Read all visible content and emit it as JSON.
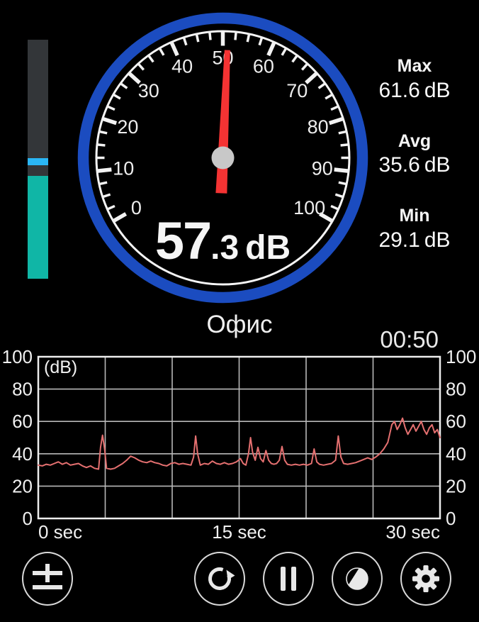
{
  "colors": {
    "background": "#000000",
    "ring_blue": "#1b4cc0",
    "needle_red": "#f43333",
    "hub_gray": "#c8c8c8",
    "tick_white": "#f2f2f2",
    "bar_track": "#333639",
    "bar_fill_teal": "#10b6a6",
    "bar_marker_cyan": "#2ab6f5",
    "chart_line": "#e57070",
    "chart_grid": "#b8b8b8",
    "chart_border": "#ededed"
  },
  "level_bar": {
    "fill_percent": 43,
    "marker_percent_from_bottom": 49
  },
  "gauge": {
    "min": 0,
    "max": 100,
    "major_step": 10,
    "minor_step": 2.5,
    "start_angle": -120,
    "end_angle": 120,
    "needle_value": 51,
    "reading": {
      "int": "57",
      "frac": ".3",
      "unit": "dB"
    }
  },
  "stats": [
    {
      "label": "Max",
      "value": "61.6",
      "unit": "dB"
    },
    {
      "label": "Avg",
      "value": "35.6",
      "unit": "dB"
    },
    {
      "label": "Min",
      "value": "29.1",
      "unit": "dB"
    }
  ],
  "location_label": "Офис",
  "timer": "00:50",
  "chart_data": {
    "type": "line",
    "title": "",
    "ylabel": "(dB)",
    "xlim": [
      0,
      30
    ],
    "ylim": [
      0,
      100
    ],
    "y_tick_step": 20,
    "x_grid_step": 5,
    "grid": true,
    "x_ticks": [
      {
        "t": 0,
        "label": "0 sec"
      },
      {
        "t": 15,
        "label": "15 sec"
      },
      {
        "t": 30,
        "label": "30 sec"
      }
    ],
    "series": [
      {
        "name": "sound-level-db",
        "points": [
          [
            0,
            33
          ],
          [
            0.3,
            32.5
          ],
          [
            0.6,
            33.5
          ],
          [
            0.9,
            33
          ],
          [
            1.2,
            34
          ],
          [
            1.5,
            35
          ],
          [
            1.8,
            33.5
          ],
          [
            2.1,
            34.5
          ],
          [
            2.4,
            33
          ],
          [
            2.7,
            33.5
          ],
          [
            3,
            34
          ],
          [
            3.3,
            32.5
          ],
          [
            3.6,
            31.5
          ],
          [
            3.9,
            32.5
          ],
          [
            4.2,
            31
          ],
          [
            4.5,
            30.5
          ],
          [
            4.65,
            44
          ],
          [
            4.8,
            51.5
          ],
          [
            4.95,
            43
          ],
          [
            5.1,
            31
          ],
          [
            5.4,
            30.5
          ],
          [
            5.7,
            31
          ],
          [
            6,
            32.5
          ],
          [
            6.3,
            34
          ],
          [
            6.6,
            36
          ],
          [
            6.9,
            38.5
          ],
          [
            7.2,
            37.5
          ],
          [
            7.5,
            36
          ],
          [
            7.8,
            35
          ],
          [
            8.1,
            34.5
          ],
          [
            8.4,
            35.5
          ],
          [
            8.7,
            34.5
          ],
          [
            9,
            34
          ],
          [
            9.3,
            33
          ],
          [
            9.6,
            32.5
          ],
          [
            9.9,
            34
          ],
          [
            10.2,
            34.5
          ],
          [
            10.5,
            33.5
          ],
          [
            10.8,
            34
          ],
          [
            11.1,
            33.5
          ],
          [
            11.4,
            33
          ],
          [
            11.6,
            38
          ],
          [
            11.75,
            51
          ],
          [
            11.9,
            40
          ],
          [
            12.1,
            33
          ],
          [
            12.4,
            34
          ],
          [
            12.7,
            33.5
          ],
          [
            13,
            35.5
          ],
          [
            13.3,
            34
          ],
          [
            13.6,
            33.5
          ],
          [
            13.9,
            34.5
          ],
          [
            14.2,
            33.5
          ],
          [
            14.5,
            34
          ],
          [
            14.8,
            35
          ],
          [
            15.1,
            37
          ],
          [
            15.3,
            34
          ],
          [
            15.5,
            33
          ],
          [
            15.7,
            40
          ],
          [
            15.85,
            50
          ],
          [
            16,
            41
          ],
          [
            16.2,
            36
          ],
          [
            16.4,
            44
          ],
          [
            16.6,
            37
          ],
          [
            16.8,
            35
          ],
          [
            17,
            42
          ],
          [
            17.2,
            36
          ],
          [
            17.4,
            34
          ],
          [
            17.6,
            33.5
          ],
          [
            17.8,
            34
          ],
          [
            18,
            36
          ],
          [
            18.2,
            44.5
          ],
          [
            18.4,
            36
          ],
          [
            18.6,
            33.5
          ],
          [
            18.9,
            33
          ],
          [
            19.2,
            33.5
          ],
          [
            19.5,
            33
          ],
          [
            19.8,
            33.5
          ],
          [
            20.1,
            33
          ],
          [
            20.4,
            34
          ],
          [
            20.6,
            43
          ],
          [
            20.8,
            35
          ],
          [
            21,
            33.5
          ],
          [
            21.3,
            33
          ],
          [
            21.6,
            33.5
          ],
          [
            21.9,
            34
          ],
          [
            22.2,
            36
          ],
          [
            22.4,
            51
          ],
          [
            22.6,
            38
          ],
          [
            22.8,
            34
          ],
          [
            23.1,
            33.5
          ],
          [
            23.4,
            34
          ],
          [
            23.7,
            34.5
          ],
          [
            24,
            35.5
          ],
          [
            24.3,
            36.5
          ],
          [
            24.6,
            37.5
          ],
          [
            24.9,
            36.5
          ],
          [
            25.2,
            38
          ],
          [
            25.5,
            40
          ],
          [
            25.8,
            43
          ],
          [
            26.1,
            47
          ],
          [
            26.4,
            58
          ],
          [
            26.6,
            60
          ],
          [
            26.8,
            55
          ],
          [
            27,
            58
          ],
          [
            27.2,
            62
          ],
          [
            27.4,
            56
          ],
          [
            27.6,
            52
          ],
          [
            27.8,
            55
          ],
          [
            28,
            58
          ],
          [
            28.2,
            54
          ],
          [
            28.4,
            57
          ],
          [
            28.6,
            60
          ],
          [
            28.8,
            55
          ],
          [
            29,
            52
          ],
          [
            29.2,
            56
          ],
          [
            29.4,
            58
          ],
          [
            29.6,
            53
          ],
          [
            29.8,
            55
          ],
          [
            30,
            50
          ]
        ]
      }
    ]
  },
  "toolbar": {
    "buttons": [
      {
        "id": "calibration",
        "icon": "plus-minus-icon"
      },
      {
        "id": "reset",
        "icon": "refresh-icon"
      },
      {
        "id": "pause",
        "icon": "pause-icon"
      },
      {
        "id": "display-mode",
        "icon": "contrast-icon"
      },
      {
        "id": "settings",
        "icon": "gear-icon"
      }
    ]
  }
}
